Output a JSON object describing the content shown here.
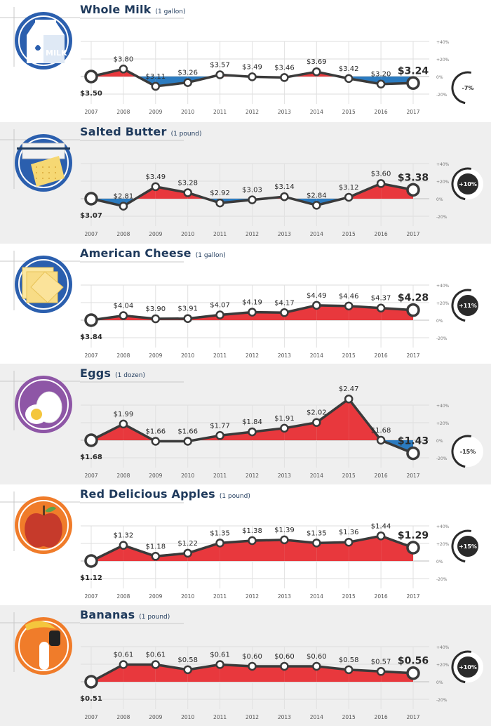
{
  "colors": {
    "navy": "#1f3a5c",
    "increase": "#e8383d",
    "decrease": "#2b7bc0",
    "line": "#3a3a3a",
    "axis_text": "#777777"
  },
  "chart_data": [
    {
      "type": "line",
      "title": "Whole Milk",
      "unit": "(1 gallon)",
      "x": [
        "2007",
        "2008",
        "2009",
        "2010",
        "2011",
        "2012",
        "2013",
        "2014",
        "2015",
        "2016",
        "2017"
      ],
      "values": [
        3.5,
        3.8,
        3.11,
        3.26,
        3.57,
        3.49,
        3.46,
        3.69,
        3.42,
        3.2,
        3.24
      ],
      "value_labels": [
        "$3.50",
        "$3.80",
        "$3.11",
        "$3.26",
        "$3.57",
        "$3.49",
        "$3.46",
        "$3.69",
        "$3.42",
        "$3.20",
        "$3.24"
      ],
      "y_ticks": [
        "+40%",
        "+20%",
        "0%",
        "-20%"
      ],
      "ylim_percent": [
        -20,
        40
      ],
      "change_label": "-7%",
      "icon": "milk-carton-icon",
      "icon_text": "MILK",
      "icon_bg": "#2b5fae"
    },
    {
      "type": "line",
      "title": "Salted Butter",
      "unit": "(1 pound)",
      "x": [
        "2007",
        "2008",
        "2009",
        "2010",
        "2011",
        "2012",
        "2013",
        "2014",
        "2015",
        "2016",
        "2017"
      ],
      "values": [
        3.07,
        2.81,
        3.49,
        3.28,
        2.92,
        3.03,
        3.14,
        2.84,
        3.12,
        3.6,
        3.38
      ],
      "value_labels": [
        "$3.07",
        "$2.81",
        "$3.49",
        "$3.28",
        "$2.92",
        "$3.03",
        "$3.14",
        "$2.84",
        "$3.12",
        "$3.60",
        "$3.38"
      ],
      "y_ticks": [
        "+40%",
        "+20%",
        "0%",
        "-20%"
      ],
      "ylim_percent": [
        -20,
        40
      ],
      "change_label": "+10%",
      "icon": "butter-icon",
      "icon_bg": "#2b5fae"
    },
    {
      "type": "line",
      "title": "American Cheese",
      "unit": "(1 gallon)",
      "x": [
        "2007",
        "2008",
        "2009",
        "2010",
        "2011",
        "2012",
        "2013",
        "2014",
        "2015",
        "2016",
        "2017"
      ],
      "values": [
        3.84,
        4.04,
        3.9,
        3.91,
        4.07,
        4.19,
        4.17,
        4.49,
        4.46,
        4.37,
        4.28
      ],
      "value_labels": [
        "$3.84",
        "$4.04",
        "$3.90",
        "$3.91",
        "$4.07",
        "$4.19",
        "$4.17",
        "$4.49",
        "$4.46",
        "$4.37",
        "$4.28"
      ],
      "y_ticks": [
        "+40%",
        "+20%",
        "0%",
        "-20%"
      ],
      "ylim_percent": [
        -20,
        40
      ],
      "change_label": "+11%",
      "icon": "cheese-slices-icon",
      "icon_bg": "#2b5fae"
    },
    {
      "type": "line",
      "title": "Eggs",
      "unit": "(1 dozen)",
      "x": [
        "2007",
        "2008",
        "2009",
        "2010",
        "2011",
        "2012",
        "2013",
        "2014",
        "2015",
        "2016",
        "2017"
      ],
      "values": [
        1.68,
        1.99,
        1.66,
        1.66,
        1.77,
        1.84,
        1.91,
        2.02,
        2.47,
        1.68,
        1.43
      ],
      "value_labels": [
        "$1.68",
        "$1.99",
        "$1.66",
        "$1.66",
        "$1.77",
        "$1.84",
        "$1.91",
        "$2.02",
        "$2.47",
        "$1.68",
        "$1.43"
      ],
      "y_ticks": [
        "+40%",
        "+20%",
        "0%",
        "-20%"
      ],
      "ylim_percent": [
        -20,
        40
      ],
      "change_label": "-15%",
      "icon": "eggs-icon",
      "icon_bg": "#8e56a6"
    },
    {
      "type": "line",
      "title": "Red Delicious Apples",
      "unit": "(1 pound)",
      "x": [
        "2007",
        "2008",
        "2009",
        "2010",
        "2011",
        "2012",
        "2013",
        "2014",
        "2015",
        "2016",
        "2017"
      ],
      "values": [
        1.12,
        1.32,
        1.18,
        1.22,
        1.35,
        1.38,
        1.39,
        1.35,
        1.36,
        1.44,
        1.29
      ],
      "value_labels": [
        "$1.12",
        "$1.32",
        "$1.18",
        "$1.22",
        "$1.35",
        "$1.38",
        "$1.39",
        "$1.35",
        "$1.36",
        "$1.44",
        "$1.29"
      ],
      "y_ticks": [
        "+40%",
        "+20%",
        "0%",
        "-20%"
      ],
      "ylim_percent": [
        -20,
        40
      ],
      "change_label": "+15%",
      "icon": "apple-icon",
      "icon_bg": "#f07c2a"
    },
    {
      "type": "line",
      "title": "Bananas",
      "unit": "(1 pound)",
      "x": [
        "2007",
        "2008",
        "2009",
        "2010",
        "2011",
        "2012",
        "2013",
        "2014",
        "2015",
        "2016",
        "2017"
      ],
      "values": [
        0.51,
        0.61,
        0.61,
        0.58,
        0.61,
        0.6,
        0.6,
        0.6,
        0.58,
        0.57,
        0.56
      ],
      "value_labels": [
        "$0.51",
        "$0.61",
        "$0.61",
        "$0.58",
        "$0.61",
        "$0.60",
        "$0.60",
        "$0.60",
        "$0.58",
        "$0.57",
        "$0.56"
      ],
      "y_ticks": [
        "+40%",
        "+20%",
        "0%",
        "-20%"
      ],
      "ylim_percent": [
        -20,
        40
      ],
      "change_label": "+10%",
      "icon": "banana-icon",
      "icon_bg": "#f07c2a"
    }
  ]
}
